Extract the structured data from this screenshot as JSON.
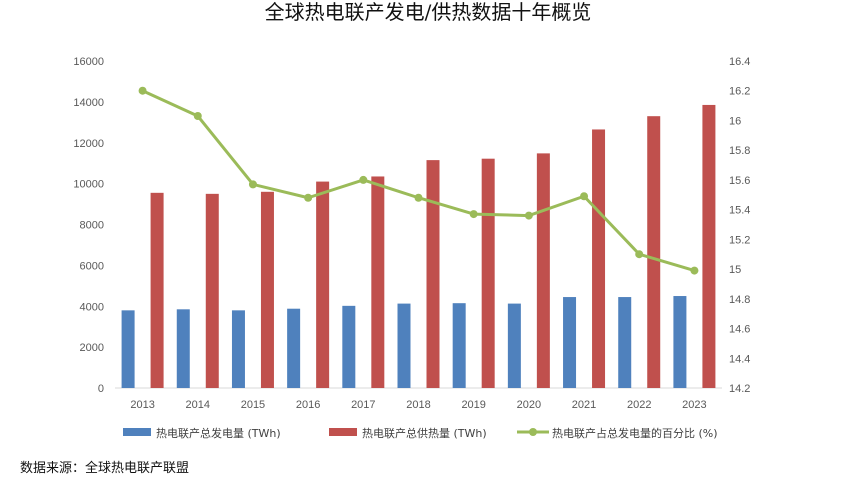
{
  "chart_data": {
    "type": "bar",
    "title": "全球热电联产发电/供热数据十年概览",
    "categories": [
      "2013",
      "2014",
      "2015",
      "2016",
      "2017",
      "2018",
      "2019",
      "2020",
      "2021",
      "2022",
      "2023"
    ],
    "series": [
      {
        "name": "热电联产总发电量 (TWh)",
        "type": "bar",
        "axis": "left",
        "color": "#4f81bd",
        "values": [
          3800,
          3850,
          3800,
          3880,
          4020,
          4130,
          4150,
          4130,
          4450,
          4450,
          4500
        ]
      },
      {
        "name": "热电联产总供热量 (TWh)",
        "type": "bar",
        "axis": "left",
        "color": "#c0504d",
        "values": [
          9550,
          9500,
          9600,
          10100,
          10350,
          11150,
          11220,
          11480,
          12650,
          13300,
          13850
        ]
      },
      {
        "name": "热电联产占总发电量的百分比 (%)",
        "type": "line",
        "axis": "right",
        "color": "#9bbb59",
        "values": [
          16.2,
          16.03,
          15.57,
          15.48,
          15.6,
          15.48,
          15.37,
          15.36,
          15.49,
          15.1,
          14.99
        ]
      }
    ],
    "y_left": {
      "min": 0,
      "max": 16000,
      "ticks": [
        "0",
        "2000",
        "4000",
        "6000",
        "8000",
        "10000",
        "12000",
        "14000",
        "16000"
      ]
    },
    "y_right": {
      "min": 14.2,
      "max": 16.4,
      "ticks": [
        "14.2",
        "14.4",
        "14.6",
        "14.8",
        "15",
        "15.2",
        "15.4",
        "15.6",
        "15.8",
        "16",
        "16.2",
        "16.4"
      ]
    },
    "grid": false,
    "legend": "bottom"
  },
  "source": "数据来源：全球热电联产联盟"
}
